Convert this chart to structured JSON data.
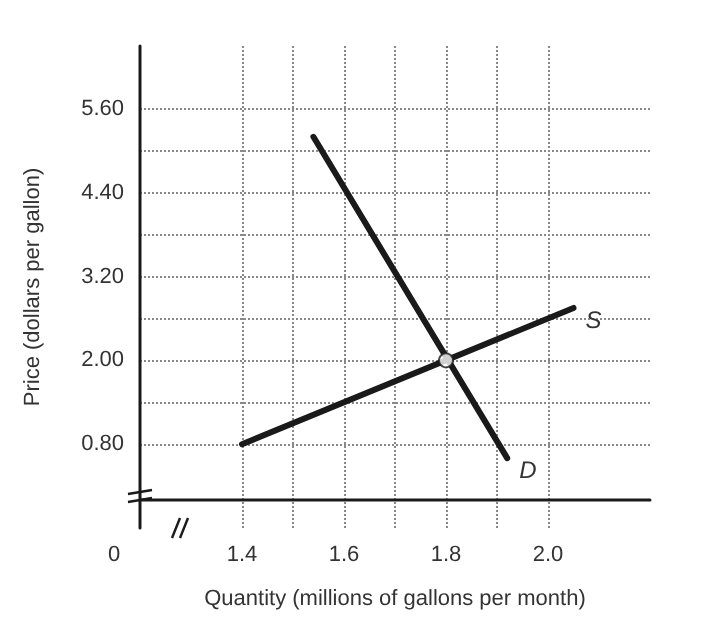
{
  "chart_data": {
    "type": "line",
    "xlabel": "Quantity (millions of gallons per month)",
    "ylabel": "Price (dollars per gallon)",
    "annotations": [
      "0"
    ],
    "series": [
      {
        "name": "S",
        "color": "#1a1a1a",
        "x": [
          1.4,
          2.05
        ],
        "values": [
          0.8,
          2.75
        ]
      },
      {
        "name": "D",
        "color": "#1a1a1a",
        "x": [
          1.54,
          1.92
        ],
        "values": [
          5.2,
          0.6
        ]
      },
      {
        "type": "scatter",
        "marker": "circle",
        "color": "#ffffff",
        "x": [
          1.8
        ],
        "values": [
          2.0
        ]
      }
    ],
    "xlim": [
      1.2,
      2.2
    ],
    "xticks": [
      1.4,
      {
        "value": 1.5,
        "label": null
      },
      1.6,
      {
        "value": 1.7,
        "label": null
      },
      1.8,
      {
        "value": 1.9,
        "label": null
      },
      {
        "value": 2.0,
        "label": "2.0"
      }
    ],
    "ylim": [
      -0.4,
      6.5
    ],
    "yticks": [
      {
        "value": 0.8,
        "label": "0.80"
      },
      {
        "value": 1.4,
        "label": null
      },
      {
        "value": 2.0,
        "label": "2.00"
      },
      {
        "value": 2.6,
        "label": null
      },
      {
        "value": 3.2,
        "label": "3.20"
      },
      {
        "value": 3.8,
        "label": null
      },
      {
        "value": 4.4,
        "label": "4.40"
      },
      {
        "value": 5.0,
        "label": null
      },
      {
        "value": 5.6,
        "label": "5.60"
      }
    ],
    "grid": true,
    "marker": "none",
    "line_style": "solid",
    "legend": false
  }
}
